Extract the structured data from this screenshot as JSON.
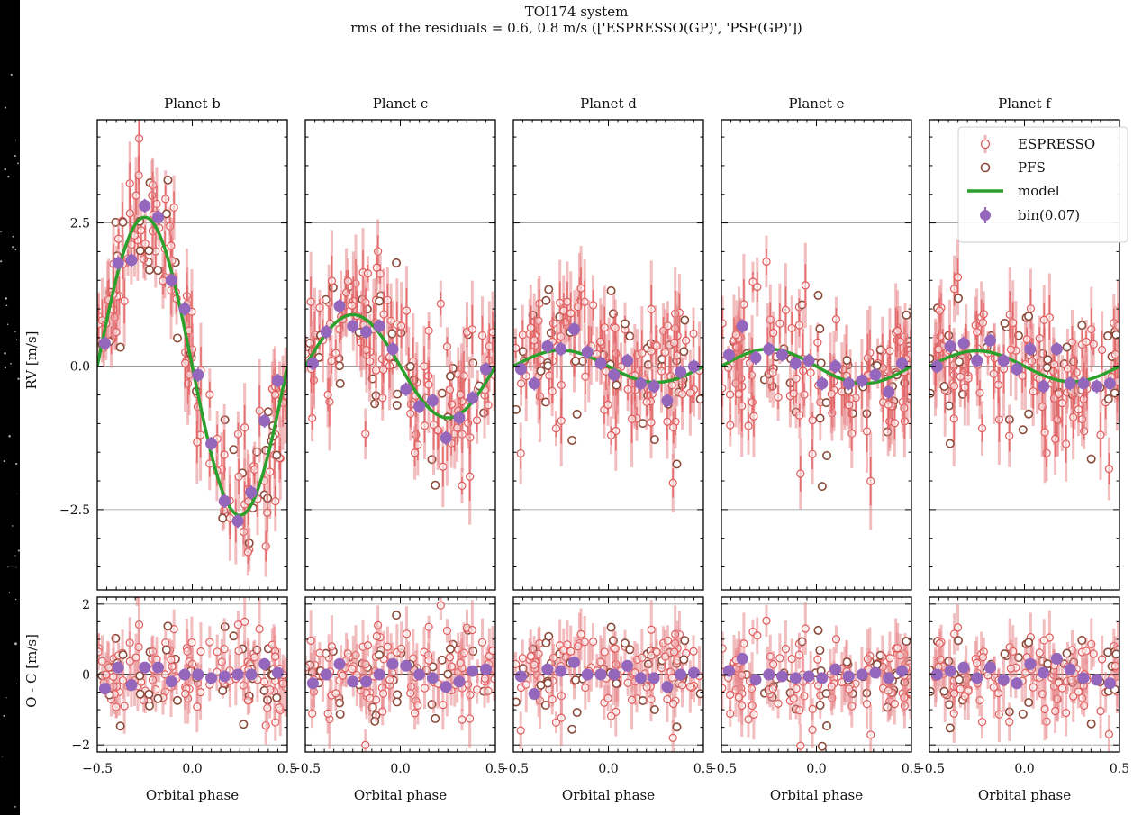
{
  "figure": {
    "title": "TOI174 system",
    "subtitle": "rms of the residuals = 0.6, 0.8 m/s (['ESPRESSO(GP)', 'PSF(GP)'])"
  },
  "colors": {
    "espresso": "#e05a5a",
    "espresso_err": "#e8868a",
    "pfs_edge": "#8b4a3a",
    "model": "#2ca02c",
    "bin": "#9467bd",
    "background_outer": "#000000",
    "panel_bg": "#ffffff"
  },
  "chart_data": {
    "type": "scatter",
    "title": "TOI174 system",
    "xlabel": "Orbital phase",
    "ylabel_top": "RV [m/s]",
    "ylabel_bottom": "O - C [m/s]",
    "xlim": [
      -0.5,
      0.5
    ],
    "ylim_top": [
      -3.9,
      4.3
    ],
    "ylim_bottom": [
      -2.2,
      2.2
    ],
    "xticks": [
      -0.5,
      0.0,
      0.5
    ],
    "xtick_labels": [
      "−0.5",
      "0.0",
      "0.5"
    ],
    "yticks_top": [
      2.5,
      0.0,
      -2.5
    ],
    "ytick_labels_top": [
      "2.5",
      "0.0",
      "−2.5"
    ],
    "yticks_bottom": [
      2,
      0,
      -2
    ],
    "ytick_labels_bottom": [
      "2",
      "0",
      "−2"
    ],
    "gridlines_top": [
      2.5,
      0.0,
      -2.5
    ],
    "gridlines_bottom": [
      2,
      0,
      -2
    ],
    "legend": {
      "placement": "top-right",
      "entries": [
        "ESPRESSO",
        "PFS",
        "model",
        "bin(0.07)"
      ]
    },
    "panels": [
      {
        "name": "Planet b",
        "model_amplitude": 2.6,
        "model_phase_peak": -0.25,
        "bin_x": [
          -0.46,
          -0.39,
          -0.32,
          -0.25,
          -0.18,
          -0.11,
          -0.04,
          0.03,
          0.1,
          0.17,
          0.24,
          0.31,
          0.38,
          0.45
        ],
        "bin_y": [
          0.4,
          1.8,
          1.85,
          2.8,
          2.6,
          1.5,
          1.0,
          -0.15,
          -1.35,
          -2.35,
          -2.7,
          -2.2,
          -0.95,
          -0.25
        ],
        "resid_bin_y": [
          -0.4,
          0.2,
          -0.3,
          0.2,
          0.2,
          -0.2,
          0.0,
          0.0,
          -0.1,
          -0.05,
          0.0,
          0.0,
          0.3,
          0.05
        ]
      },
      {
        "name": "Planet c",
        "model_amplitude": 0.9,
        "model_phase_peak": -0.25,
        "bin_x": [
          -0.46,
          -0.39,
          -0.32,
          -0.25,
          -0.18,
          -0.11,
          -0.04,
          0.03,
          0.1,
          0.17,
          0.24,
          0.31,
          0.38,
          0.45
        ],
        "bin_y": [
          0.05,
          0.6,
          1.05,
          0.7,
          0.6,
          0.7,
          0.3,
          -0.4,
          -0.7,
          -0.6,
          -1.25,
          -0.9,
          -0.55,
          -0.05
        ],
        "resid_bin_y": [
          -0.25,
          0.0,
          0.3,
          -0.2,
          -0.2,
          0.0,
          0.3,
          0.25,
          0.0,
          -0.1,
          -0.35,
          -0.2,
          0.1,
          0.15
        ]
      },
      {
        "name": "Planet d",
        "model_amplitude": 0.28,
        "model_phase_peak": -0.25,
        "bin_x": [
          -0.46,
          -0.39,
          -0.32,
          -0.25,
          -0.18,
          -0.11,
          -0.04,
          0.03,
          0.1,
          0.17,
          0.24,
          0.31,
          0.38,
          0.45
        ],
        "bin_y": [
          -0.05,
          -0.3,
          0.35,
          0.3,
          0.65,
          0.25,
          0.05,
          -0.15,
          0.1,
          -0.3,
          -0.35,
          -0.6,
          -0.1,
          0.0
        ],
        "resid_bin_y": [
          -0.05,
          -0.55,
          0.15,
          0.1,
          0.35,
          0.0,
          0.0,
          0.0,
          0.25,
          -0.1,
          -0.1,
          -0.35,
          0.0,
          0.05
        ]
      },
      {
        "name": "Planet e",
        "model_amplitude": 0.3,
        "model_phase_peak": -0.25,
        "bin_x": [
          -0.46,
          -0.39,
          -0.32,
          -0.25,
          -0.18,
          -0.11,
          -0.04,
          0.03,
          0.1,
          0.17,
          0.24,
          0.31,
          0.38,
          0.45
        ],
        "bin_y": [
          0.2,
          0.7,
          0.15,
          0.3,
          0.2,
          0.05,
          0.1,
          -0.3,
          0.0,
          -0.3,
          -0.25,
          -0.15,
          -0.45,
          0.05
        ],
        "resid_bin_y": [
          0.1,
          0.45,
          -0.15,
          0.0,
          -0.05,
          -0.1,
          -0.05,
          -0.1,
          0.15,
          -0.05,
          0.0,
          0.05,
          -0.1,
          0.1
        ]
      },
      {
        "name": "Planet f",
        "model_amplitude": 0.27,
        "model_phase_peak": -0.25,
        "bin_x": [
          -0.46,
          -0.39,
          -0.32,
          -0.25,
          -0.18,
          -0.11,
          -0.04,
          0.03,
          0.1,
          0.17,
          0.24,
          0.31,
          0.38,
          0.45
        ],
        "bin_y": [
          0.0,
          0.35,
          0.4,
          0.1,
          0.45,
          0.1,
          -0.05,
          0.3,
          -0.35,
          0.3,
          -0.3,
          -0.3,
          -0.35,
          -0.3
        ],
        "resid_bin_y": [
          0.0,
          0.1,
          0.2,
          -0.1,
          0.2,
          -0.15,
          -0.25,
          0.3,
          0.05,
          0.45,
          0.15,
          -0.1,
          -0.15,
          -0.25
        ]
      }
    ]
  }
}
